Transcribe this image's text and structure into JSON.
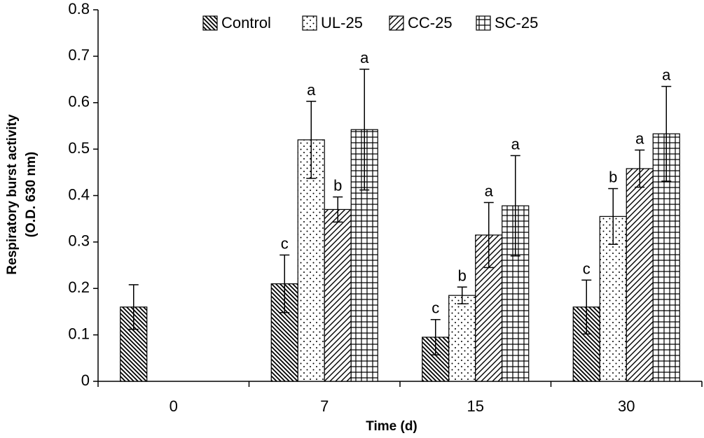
{
  "chart_data": {
    "type": "bar",
    "xlabel": "Time (d)",
    "ylabel_line1": "Respiratory burst activity",
    "ylabel_line2": "(O.D. 630 nm)",
    "ylim": [
      0,
      0.8
    ],
    "yticks": [
      "0",
      "0.1",
      "0.2",
      "0.3",
      "0.4",
      "0.5",
      "0.6",
      "0.7",
      "0.8"
    ],
    "categories": [
      "0",
      "7",
      "15",
      "30"
    ],
    "legend_position": "top",
    "series": [
      {
        "name": "Control",
        "pattern": "diag-dense",
        "values": [
          0.16,
          0.21,
          0.095,
          0.16
        ],
        "errors": [
          0.048,
          0.062,
          0.038,
          0.058
        ],
        "labels": [
          "",
          "c",
          "c",
          "c"
        ]
      },
      {
        "name": "UL-25",
        "pattern": "dots",
        "values": [
          null,
          0.52,
          0.185,
          0.355
        ],
        "errors": [
          null,
          0.083,
          0.018,
          0.06
        ],
        "labels": [
          "",
          "a",
          "b",
          "b"
        ]
      },
      {
        "name": "CC-25",
        "pattern": "diag-wide",
        "values": [
          null,
          0.37,
          0.315,
          0.458
        ],
        "errors": [
          null,
          0.027,
          0.07,
          0.04
        ],
        "labels": [
          "",
          "b",
          "a",
          "a"
        ]
      },
      {
        "name": "SC-25",
        "pattern": "grid",
        "values": [
          null,
          0.542,
          0.378,
          0.533
        ],
        "errors": [
          null,
          0.13,
          0.108,
          0.102
        ],
        "labels": [
          "",
          "a",
          "a",
          "a"
        ]
      }
    ]
  }
}
